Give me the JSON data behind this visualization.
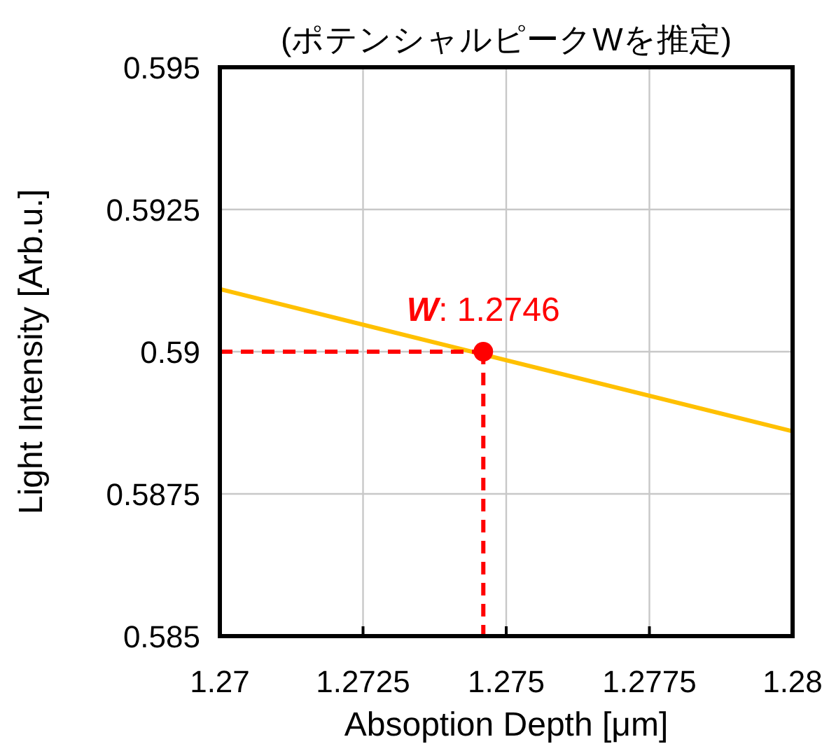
{
  "chart_data": {
    "type": "line",
    "title": "(ポテンシャルピークWを推定)",
    "xlabel": "Absoption Depth [μm]",
    "ylabel": "Light Intensity [Arb.u.]",
    "x": [
      1.27,
      1.28
    ],
    "series": [
      {
        "color": "#ffc000",
        "values": [
          0.5911,
          0.5886
        ]
      }
    ],
    "xlim": [
      1.27,
      1.28
    ],
    "ylim": [
      0.585,
      0.595
    ],
    "xticks": [
      1.27,
      1.2725,
      1.275,
      1.2775,
      1.28
    ],
    "yticks": [
      0.585,
      0.5875,
      0.59,
      0.5925,
      0.595
    ],
    "grid": true,
    "annotations": [
      {
        "text": "**W**: 1.2746",
        "x": 1.2746,
        "y": 0.59
      }
    ]
  }
}
